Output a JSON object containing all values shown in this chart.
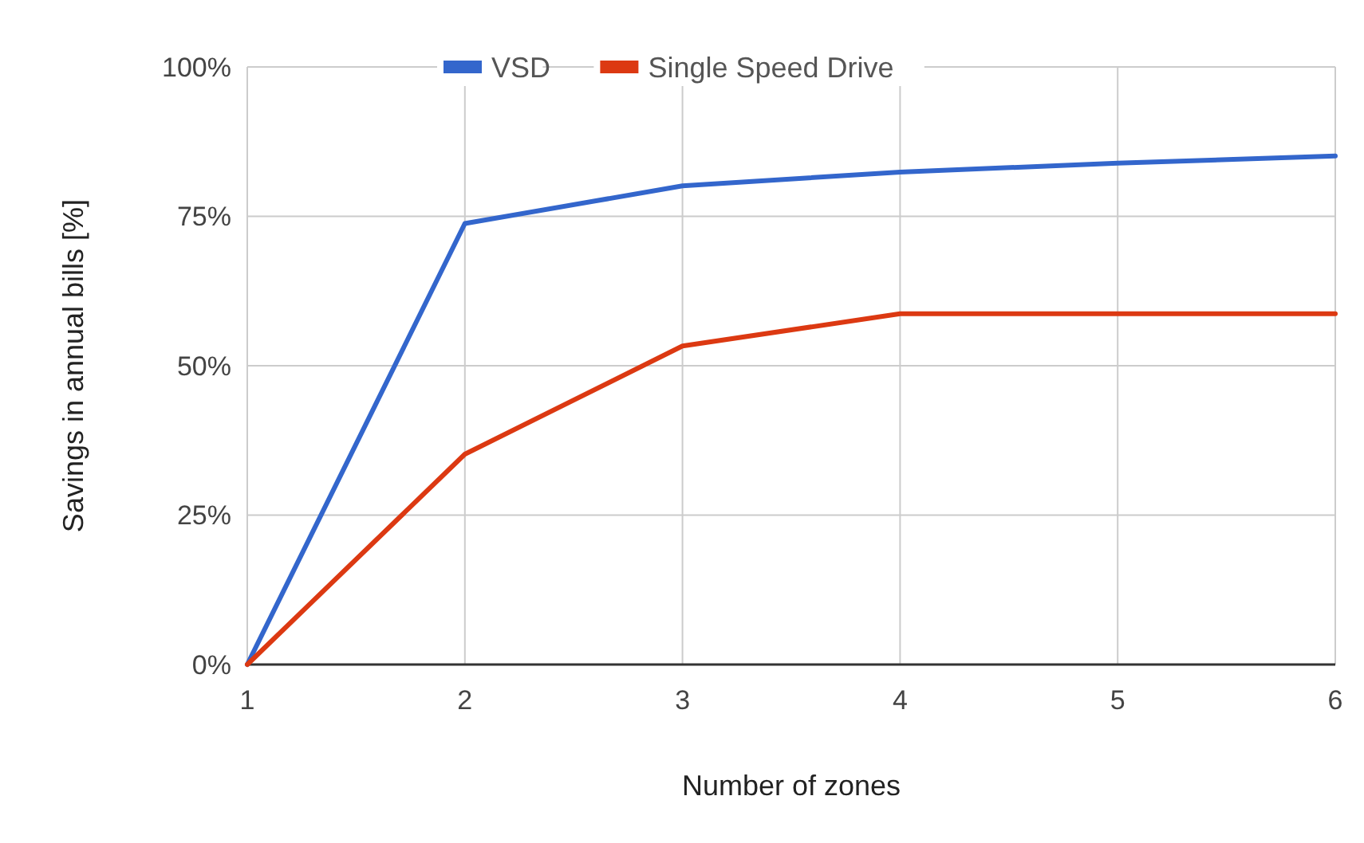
{
  "chart_data": {
    "type": "line",
    "xlabel": "Number of zones",
    "ylabel": "Savings in annual bills [%]",
    "x": [
      1,
      2,
      3,
      4,
      5,
      6
    ],
    "xlim": [
      1,
      6
    ],
    "xticks": [
      1,
      2,
      3,
      4,
      5,
      6
    ],
    "ylim": [
      0,
      100
    ],
    "yticks": [
      {
        "value": 0,
        "label": "0%"
      },
      {
        "value": 25,
        "label": "25%"
      },
      {
        "value": 50,
        "label": "50%"
      },
      {
        "value": 75,
        "label": "75%"
      },
      {
        "value": 100,
        "label": "100%"
      }
    ],
    "grid": true,
    "legend": "top",
    "marker": "none",
    "line_style": "solid",
    "series": [
      {
        "name": "VSD",
        "color": "#3366cc",
        "values": [
          0,
          73.8,
          80.1,
          82.4,
          83.9,
          85.1
        ]
      },
      {
        "name": "Single Speed Drive",
        "color": "#dc3912",
        "values": [
          0,
          35.2,
          53.3,
          58.7,
          58.7,
          58.7
        ]
      }
    ]
  }
}
